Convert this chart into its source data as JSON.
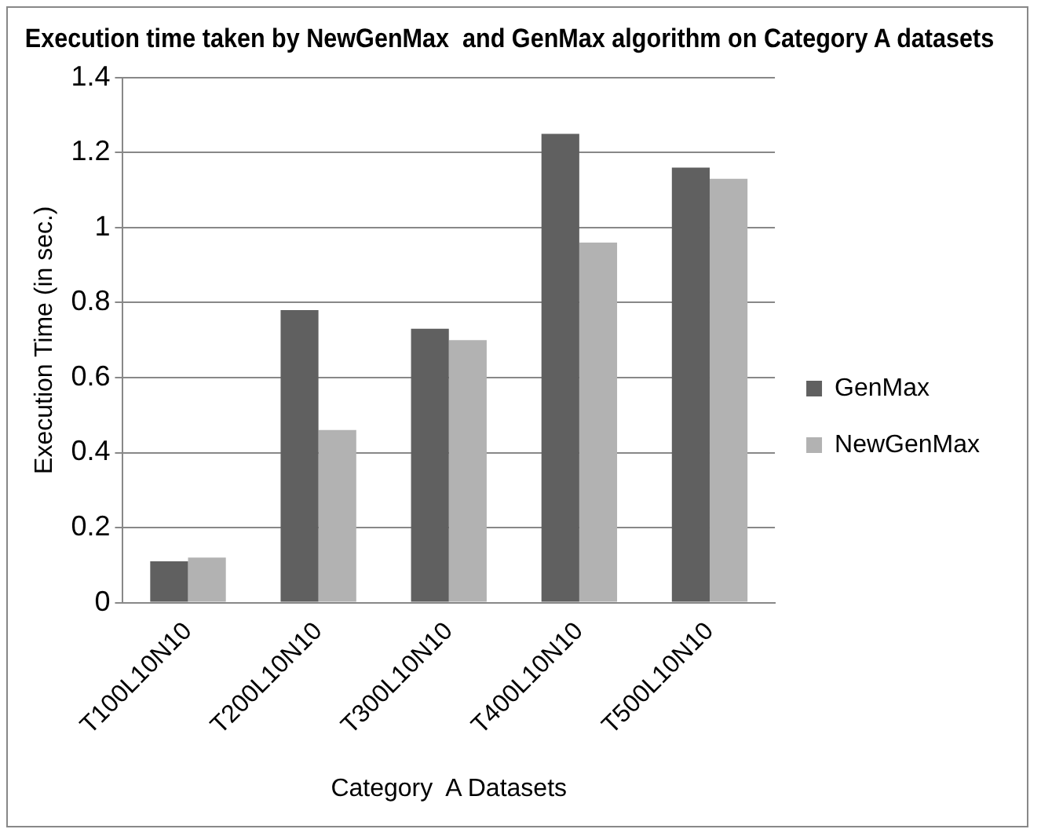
{
  "chart_data": {
    "type": "bar",
    "title": "Execution time taken by NewGenMax  and GenMax algorithm on Category A datasets",
    "xlabel": "Category  A Datasets",
    "ylabel": "Execution Time (in sec.)",
    "categories": [
      "T100L10N10",
      "T200L10N10",
      "T300L10N10",
      "T400L10N10",
      "T500L10N10"
    ],
    "series": [
      {
        "name": "GenMax",
        "color": "#606060",
        "values": [
          0.11,
          0.78,
          0.73,
          1.25,
          1.16
        ]
      },
      {
        "name": "NewGenMax",
        "color": "#b2b2b2",
        "values": [
          0.12,
          0.46,
          0.7,
          0.96,
          1.13
        ]
      }
    ],
    "ylim": [
      0,
      1.4
    ],
    "yticks": [
      0,
      0.2,
      0.4,
      0.6,
      0.8,
      1,
      1.2,
      1.4
    ],
    "grid": "y",
    "legend": "right"
  }
}
